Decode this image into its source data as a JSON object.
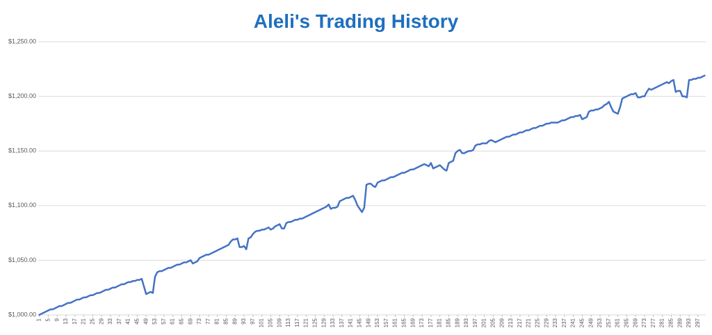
{
  "chart_data": {
    "type": "line",
    "title": "Aleli's Trading History",
    "x": [
      1,
      2,
      3,
      4,
      5,
      6,
      7,
      8,
      9,
      10,
      11,
      12,
      13,
      14,
      15,
      16,
      17,
      18,
      19,
      20,
      21,
      22,
      23,
      24,
      25,
      26,
      27,
      28,
      29,
      30,
      31,
      32,
      33,
      34,
      35,
      36,
      37,
      38,
      39,
      40,
      41,
      42,
      43,
      44,
      45,
      46,
      47,
      48,
      49,
      50,
      51,
      52,
      53,
      54,
      55,
      56,
      57,
      58,
      59,
      60,
      61,
      62,
      63,
      64,
      65,
      66,
      67,
      68,
      69,
      70,
      71,
      72,
      73,
      74,
      75,
      76,
      77,
      78,
      79,
      80,
      81,
      82,
      83,
      84,
      85,
      86,
      87,
      88,
      89,
      90,
      91,
      92,
      93,
      94,
      95,
      96,
      97,
      98,
      99,
      100,
      101,
      102,
      103,
      104,
      105,
      106,
      107,
      108,
      109,
      110,
      111,
      112,
      113,
      114,
      115,
      116,
      117,
      118,
      119,
      120,
      121,
      122,
      123,
      124,
      125,
      126,
      127,
      128,
      129,
      130,
      131,
      132,
      133,
      134,
      135,
      136,
      137,
      138,
      139,
      140,
      141,
      142,
      143,
      144,
      145,
      146,
      147,
      148,
      149,
      150,
      151,
      152,
      153,
      154,
      155,
      156,
      157,
      158,
      159,
      160,
      161,
      162,
      163,
      164,
      165,
      166,
      167,
      168,
      169,
      170,
      171,
      172,
      173,
      174,
      175,
      176,
      177,
      178,
      179,
      180,
      181,
      182,
      183,
      184,
      185,
      186,
      187,
      188,
      189,
      190,
      191,
      192,
      193,
      194,
      195,
      196,
      197,
      198,
      199,
      200,
      201,
      202,
      203,
      204,
      205,
      206,
      207,
      208,
      209,
      210,
      211,
      212,
      213,
      214,
      215,
      216,
      217,
      218,
      219,
      220,
      221,
      222,
      223,
      224,
      225,
      226,
      227,
      228,
      229,
      230,
      231,
      232,
      233,
      234,
      235,
      236,
      237,
      238,
      239,
      240,
      241,
      242,
      243,
      244,
      245,
      246,
      247,
      248,
      249,
      250,
      251,
      252,
      253,
      254,
      255,
      256,
      257,
      258,
      259,
      260,
      261,
      262,
      263,
      264,
      265,
      266,
      267,
      268,
      269,
      270,
      271,
      272,
      273,
      274,
      275,
      276,
      277,
      278,
      279,
      280,
      281,
      282,
      283,
      284,
      285,
      286,
      287,
      288,
      289,
      290,
      291,
      292,
      293,
      294,
      295,
      296,
      297,
      298,
      299,
      300
    ],
    "values": [
      1000,
      1001,
      1002,
      1003,
      1004,
      1005,
      1005,
      1006,
      1007,
      1008,
      1008,
      1009,
      1010,
      1011,
      1011,
      1012,
      1013,
      1014,
      1014,
      1015,
      1016,
      1016,
      1017,
      1018,
      1018,
      1019,
      1020,
      1020,
      1021,
      1022,
      1023,
      1023,
      1024,
      1025,
      1025,
      1026,
      1027,
      1028,
      1028,
      1029,
      1030,
      1030,
      1031,
      1031,
      1032,
      1032,
      1033,
      1026,
      1019,
      1020,
      1021,
      1020,
      1035,
      1039,
      1040,
      1040,
      1041,
      1042,
      1043,
      1043,
      1044,
      1045,
      1046,
      1046,
      1047,
      1048,
      1048,
      1049,
      1050,
      1047,
      1048,
      1049,
      1052,
      1053,
      1054,
      1055,
      1055,
      1056,
      1057,
      1058,
      1059,
      1060,
      1061,
      1062,
      1063,
      1064,
      1067,
      1069,
      1069,
      1070,
      1062,
      1062,
      1063,
      1060,
      1070,
      1071,
      1074,
      1076,
      1077,
      1077,
      1078,
      1078,
      1079,
      1080,
      1078,
      1079,
      1081,
      1082,
      1083,
      1079,
      1079,
      1084,
      1085,
      1085,
      1086,
      1087,
      1087,
      1088,
      1088,
      1089,
      1090,
      1091,
      1092,
      1093,
      1094,
      1095,
      1096,
      1097,
      1098,
      1099,
      1101,
      1097,
      1098,
      1098,
      1099,
      1104,
      1105,
      1106,
      1107,
      1107,
      1108,
      1109,
      1105,
      1100,
      1097,
      1094,
      1098,
      1119,
      1120,
      1120,
      1118,
      1117,
      1121,
      1122,
      1123,
      1123,
      1124,
      1125,
      1126,
      1126,
      1127,
      1128,
      1129,
      1130,
      1130,
      1131,
      1132,
      1133,
      1133,
      1134,
      1135,
      1136,
      1137,
      1138,
      1137,
      1136,
      1139,
      1134,
      1135,
      1136,
      1137,
      1135,
      1133,
      1132,
      1139,
      1140,
      1141,
      1148,
      1150,
      1151,
      1148,
      1148,
      1149,
      1150,
      1150,
      1151,
      1155,
      1156,
      1156,
      1157,
      1157,
      1157,
      1159,
      1160,
      1159,
      1158,
      1159,
      1160,
      1161,
      1162,
      1163,
      1163,
      1164,
      1165,
      1165,
      1166,
      1167,
      1167,
      1168,
      1169,
      1169,
      1170,
      1171,
      1171,
      1172,
      1173,
      1173,
      1174,
      1175,
      1175,
      1176,
      1176,
      1176,
      1176,
      1177,
      1178,
      1178,
      1179,
      1180,
      1181,
      1181,
      1182,
      1182,
      1183,
      1179,
      1180,
      1181,
      1186,
      1187,
      1187,
      1188,
      1188,
      1189,
      1190,
      1192,
      1193,
      1195,
      1190,
      1186,
      1185,
      1184,
      1190,
      1198,
      1199,
      1200,
      1201,
      1202,
      1202,
      1203,
      1199,
      1199,
      1200,
      1200,
      1204,
      1207,
      1206,
      1207,
      1208,
      1209,
      1210,
      1211,
      1212,
      1213,
      1212,
      1214,
      1215,
      1204,
      1205,
      1205,
      1200,
      1200,
      1199,
      1215,
      1215,
      1216,
      1216,
      1217,
      1217,
      1218,
      1219
    ],
    "color": "#4472c4",
    "xlim": [
      0.5,
      300.5
    ],
    "xticks": [
      1,
      5,
      9,
      13,
      17,
      21,
      25,
      29,
      33,
      37,
      41,
      45,
      49,
      53,
      57,
      61,
      65,
      69,
      73,
      77,
      81,
      85,
      89,
      93,
      97,
      101,
      105,
      109,
      113,
      117,
      121,
      125,
      129,
      133,
      137,
      141,
      145,
      149,
      153,
      157,
      161,
      165,
      169,
      173,
      177,
      181,
      185,
      189,
      193,
      197,
      201,
      205,
      209,
      213,
      217,
      221,
      225,
      229,
      233,
      237,
      241,
      245,
      249,
      253,
      257,
      261,
      265,
      269,
      273,
      277,
      281,
      285,
      289,
      293,
      297
    ],
    "ylim": [
      1000,
      1250
    ],
    "yticks": [
      {
        "value": 1000,
        "label": "$1,000.00"
      },
      {
        "value": 1050,
        "label": "$1,050.00"
      },
      {
        "value": 1100,
        "label": "$1,100.00"
      },
      {
        "value": 1150,
        "label": "$1,150.00"
      },
      {
        "value": 1200,
        "label": "$1,200.00"
      },
      {
        "value": 1250,
        "label": "$1,250.00"
      }
    ],
    "grid": true
  }
}
